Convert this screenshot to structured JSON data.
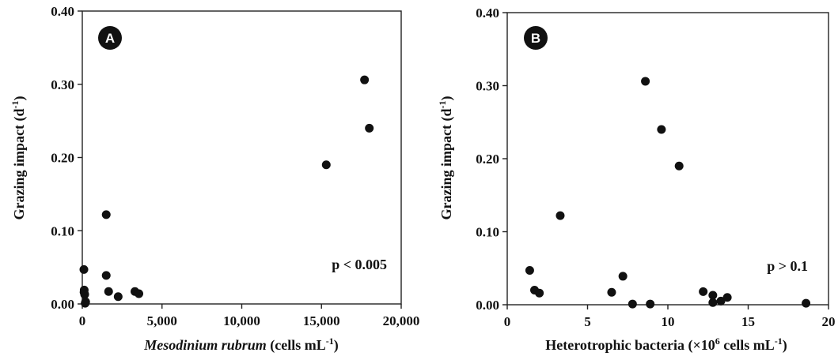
{
  "chart_data": [
    {
      "type": "scatter",
      "panel_label": "A",
      "xlabel_italic": "Mesodinium rubrum",
      "xlabel_rest": " (cells mL",
      "xlabel_sup": "-1",
      "xlabel_close": ")",
      "ylabel": "Grazing impact (d",
      "ylabel_sup": "-1",
      "ylabel_close": ")",
      "xlim": [
        0,
        20000
      ],
      "ylim": [
        0,
        0.4
      ],
      "xticks": [
        0,
        5000,
        10000,
        15000,
        20000
      ],
      "xtick_labels": [
        "0",
        "5,000",
        "10,000",
        "15,000",
        "20,000"
      ],
      "yticks": [
        0,
        0.1,
        0.2,
        0.3,
        0.4
      ],
      "ytick_labels": [
        "0.00",
        "0.10",
        "0.20",
        "0.30",
        "0.40"
      ],
      "annotation": "p < 0.005",
      "grid": false,
      "points": [
        {
          "x": 100,
          "y": 0.047
        },
        {
          "x": 120,
          "y": 0.019
        },
        {
          "x": 110,
          "y": 0.016
        },
        {
          "x": 150,
          "y": 0.013
        },
        {
          "x": 180,
          "y": 0.001
        },
        {
          "x": 210,
          "y": 0.003
        },
        {
          "x": 1500,
          "y": 0.122
        },
        {
          "x": 1500,
          "y": 0.039
        },
        {
          "x": 1650,
          "y": 0.017
        },
        {
          "x": 2250,
          "y": 0.01
        },
        {
          "x": 3300,
          "y": 0.017
        },
        {
          "x": 3550,
          "y": 0.014
        },
        {
          "x": 15300,
          "y": 0.19
        },
        {
          "x": 17700,
          "y": 0.306
        },
        {
          "x": 18000,
          "y": 0.24
        }
      ]
    },
    {
      "type": "scatter",
      "panel_label": "B",
      "xlabel_pre": "Heterotrophic bacteria (×10",
      "xlabel_sup": "6",
      "xlabel_mid": " cells mL",
      "xlabel_sup2": "-1",
      "xlabel_close": ")",
      "ylabel": "Grazing impact (d",
      "ylabel_sup": "-1",
      "ylabel_close": ")",
      "xlim": [
        0,
        20
      ],
      "ylim": [
        0,
        0.4
      ],
      "xticks": [
        0,
        5,
        10,
        15,
        20
      ],
      "xtick_labels": [
        "0",
        "5",
        "10",
        "15",
        "20"
      ],
      "yticks": [
        0,
        0.1,
        0.2,
        0.3,
        0.4
      ],
      "ytick_labels": [
        "0.00",
        "0.10",
        "0.20",
        "0.30",
        "0.40"
      ],
      "annotation": "p > 0.1",
      "grid": false,
      "points": [
        {
          "x": 1.4,
          "y": 0.047
        },
        {
          "x": 1.7,
          "y": 0.02
        },
        {
          "x": 2.0,
          "y": 0.016
        },
        {
          "x": 3.3,
          "y": 0.122
        },
        {
          "x": 6.5,
          "y": 0.017
        },
        {
          "x": 7.2,
          "y": 0.039
        },
        {
          "x": 7.8,
          "y": 0.001
        },
        {
          "x": 8.6,
          "y": 0.306
        },
        {
          "x": 8.9,
          "y": 0.001
        },
        {
          "x": 9.6,
          "y": 0.24
        },
        {
          "x": 10.7,
          "y": 0.19
        },
        {
          "x": 12.2,
          "y": 0.018
        },
        {
          "x": 12.8,
          "y": 0.013
        },
        {
          "x": 12.8,
          "y": 0.003
        },
        {
          "x": 13.3,
          "y": 0.005
        },
        {
          "x": 13.7,
          "y": 0.01
        },
        {
          "x": 18.6,
          "y": 0.002
        }
      ]
    }
  ]
}
